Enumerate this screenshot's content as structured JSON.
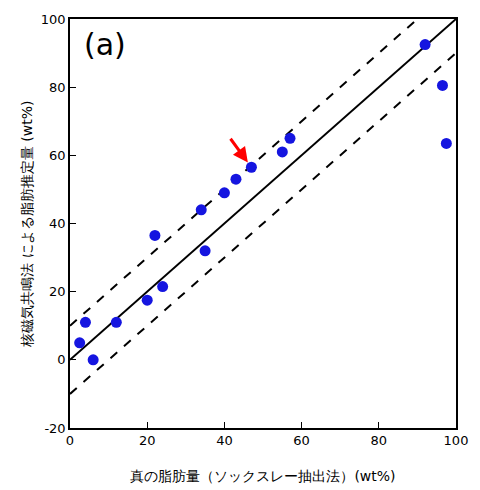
{
  "chart_data": {
    "type": "scatter",
    "panel_label": "(a)",
    "x_label": "真の脂肪量（ソックスレー抽出法）(wt%)",
    "y_label": "核磁気共鳴法 による脂肪推定量 (wt%)",
    "x": [
      2.5,
      4,
      6,
      12,
      20,
      22,
      24,
      34,
      35,
      40,
      43,
      47,
      55,
      57,
      92,
      96.5,
      97.5
    ],
    "values": [
      5,
      11,
      0,
      11,
      17.5,
      36.5,
      21.5,
      44,
      32,
      49,
      53,
      56.5,
      61,
      65,
      92.5,
      80.5,
      63.5
    ],
    "color": "#1515e0",
    "marker": "circle",
    "xlim": [
      0,
      100
    ],
    "ylim": [
      -20,
      100
    ],
    "xticks": [
      0,
      20,
      40,
      60,
      80,
      100
    ],
    "yticks": [
      -20,
      0,
      20,
      40,
      60,
      80,
      100
    ],
    "grid": false,
    "reference_lines": [
      {
        "offset": 0,
        "line_style": "solid",
        "color": "#000000"
      },
      {
        "offset": 10,
        "line_style": "dashed",
        "color": "#000000"
      },
      {
        "offset": -10,
        "line_style": "dashed",
        "color": "#000000"
      }
    ],
    "highlight": {
      "x": 47,
      "y": 56.5,
      "color": "#ff0000"
    }
  }
}
